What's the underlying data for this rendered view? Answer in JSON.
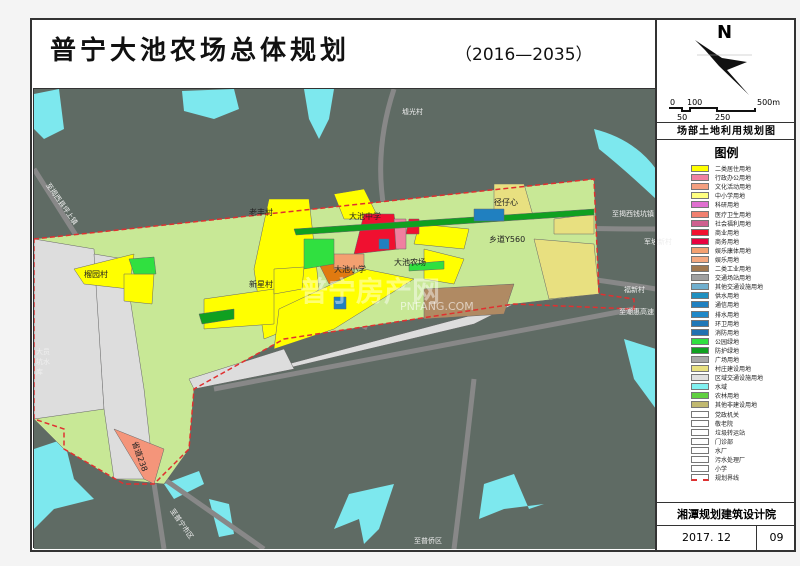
{
  "title": "普宁大池农场总体规划",
  "years": "（2016—2035）",
  "subtitle": "场部土地利用规划图",
  "north": "N",
  "scale": {
    "top": [
      "0",
      "100",
      "500m"
    ],
    "bottom": [
      "50",
      "250"
    ]
  },
  "legend_title": "图例",
  "legend": [
    {
      "label": "二类居住用地",
      "color": "#ffff00"
    },
    {
      "label": "行政办公用地",
      "color": "#f080a0"
    },
    {
      "label": "文化活动用地",
      "color": "#f4a080"
    },
    {
      "label": "中小学用地",
      "color": "#ffff80"
    },
    {
      "label": "科研用地",
      "color": "#e070d0"
    },
    {
      "label": "医疗卫生用地",
      "color": "#f08070"
    },
    {
      "label": "社会福利用地",
      "color": "#d06090"
    },
    {
      "label": "商业用地",
      "color": "#f01030"
    },
    {
      "label": "商务用地",
      "color": "#e80040"
    },
    {
      "label": "娱乐康体用地",
      "color": "#f4a070"
    },
    {
      "label": "娱乐用地",
      "color": "#f4a880"
    },
    {
      "label": "二类工业用地",
      "color": "#a07850"
    },
    {
      "label": "交通场站用地",
      "color": "#a0a0a0"
    },
    {
      "label": "其他交通设施用地",
      "color": "#70b0d0"
    },
    {
      "label": "供水用地",
      "color": "#2090c0"
    },
    {
      "label": "通信用地",
      "color": "#2080c0"
    },
    {
      "label": "排水用地",
      "color": "#2088c8"
    },
    {
      "label": "环卫用地",
      "color": "#2078b8"
    },
    {
      "label": "消防用地",
      "color": "#2070b0"
    },
    {
      "label": "公园绿地",
      "color": "#30e040"
    },
    {
      "label": "防护绿地",
      "color": "#10a020"
    },
    {
      "label": "广场用地",
      "color": "#a8a8a8"
    },
    {
      "label": "村庄建设用地",
      "color": "#e8e080"
    },
    {
      "label": "区域交通设施用地",
      "color": "#e0e0e0"
    },
    {
      "label": "水域",
      "color": "#80f0f0"
    },
    {
      "label": "农林用地",
      "color": "#60d040"
    },
    {
      "label": "其他非建设用地",
      "color": "#c0b870"
    },
    {
      "label": "党政机关",
      "color": "#ffffff"
    },
    {
      "label": "敬老院",
      "color": "#ffffff"
    },
    {
      "label": "垃圾转运站",
      "color": "#ffffff"
    },
    {
      "label": "门诊部",
      "color": "#ffffff"
    },
    {
      "label": "水厂",
      "color": "#ffffff"
    },
    {
      "label": "污水处理厂",
      "color": "#ffffff"
    },
    {
      "label": "小学",
      "color": "#ffffff"
    },
    {
      "label": "规划界线",
      "color": "#e03030"
    }
  ],
  "map_labels": {
    "v1": "墟光村",
    "school": "大池中学",
    "jzx": "径仔心",
    "to_qk": "至揭西钱坑镇",
    "road": "乡道Y560",
    "jpx": "军坡新村",
    "fx": "福新村",
    "to_hw": "至潮惠高速",
    "lf": "老丰村",
    "to_ps": "至揭西县坪上镇",
    "ly": "榴园村",
    "xx": "新星村",
    "pschool": "大池小学",
    "farm": "大池农场",
    "res": "大员坑水库",
    "sd": "省道238",
    "to_pn": "至普宁市区",
    "to_pq": "至普侨区"
  },
  "institute": "湘潭规划建筑设计院",
  "date": "2017. 12",
  "sheet": "09",
  "watermark": "PNFANG.COM"
}
